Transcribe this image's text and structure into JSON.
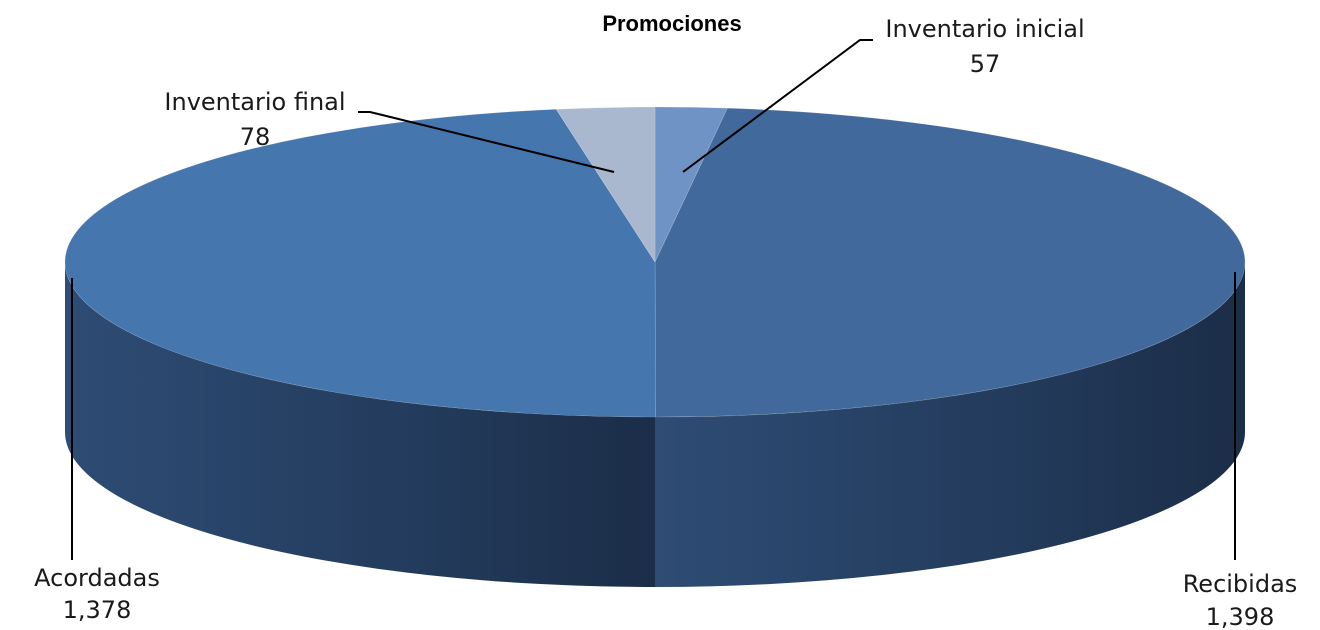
{
  "chart_data": {
    "type": "pie",
    "title": "Promociones",
    "categories": [
      "Inventario inicial",
      "Recibidas",
      "Acordadas",
      "Inventario final"
    ],
    "values": [
      57,
      1398,
      1378,
      78
    ],
    "value_labels": [
      "57",
      "1,398",
      "1,378",
      "78"
    ],
    "colors": [
      "#6e93c4",
      "#41699b",
      "#4676ae",
      "#a9b7cf"
    ],
    "style": "3d",
    "legend": "none"
  }
}
